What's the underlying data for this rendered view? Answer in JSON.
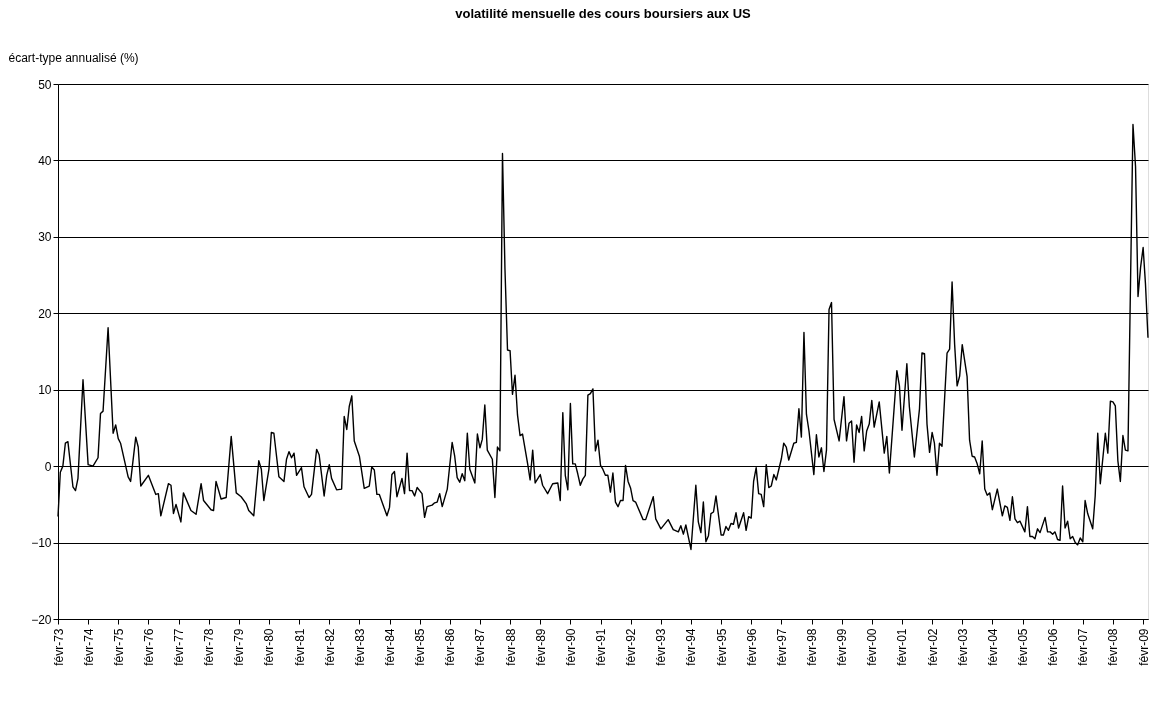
{
  "chart_data": {
    "type": "line",
    "title": "volatilité mensuelle des cours boursiers aux US",
    "ylabel": "écart-type annualisé (%)",
    "x": [
      "1973-02",
      "1973-03",
      "1973-04",
      "1973-05",
      "1973-06",
      "1973-08",
      "1973-09",
      "1973-10",
      "1973-12",
      "1974-02",
      "1974-04",
      "1974-06",
      "1974-07",
      "1974-08",
      "1974-10",
      "1974-12",
      "1975-01",
      "1975-02",
      "1975-03",
      "1975-06",
      "1975-07",
      "1975-09",
      "1975-10",
      "1975-11",
      "1976-02",
      "1976-05",
      "1976-06",
      "1976-07",
      "1976-10",
      "1976-11",
      "1976-12",
      "1977-01",
      "1977-03",
      "1977-04",
      "1977-07",
      "1977-09",
      "1977-11",
      "1977-12",
      "1978-03",
      "1978-04",
      "1978-05",
      "1978-07",
      "1978-09",
      "1978-11",
      "1979-01",
      "1979-03",
      "1979-05",
      "1979-06",
      "1979-08",
      "1979-10",
      "1979-11",
      "1979-12",
      "1980-02",
      "1980-03",
      "1980-04",
      "1980-06",
      "1980-08",
      "1980-09",
      "1980-10",
      "1980-11",
      "1980-12",
      "1981-01",
      "1981-03",
      "1981-04",
      "1981-06",
      "1981-07",
      "1981-09",
      "1981-10",
      "1981-12",
      "1982-01",
      "1982-02",
      "1982-03",
      "1982-05",
      "1982-07",
      "1982-08",
      "1982-09",
      "1982-10",
      "1982-11",
      "1982-12",
      "1983-02",
      "1983-04",
      "1983-06",
      "1983-07",
      "1983-08",
      "1983-09",
      "1983-10",
      "1984-01",
      "1984-02",
      "1984-03",
      "1984-04",
      "1984-05",
      "1984-07",
      "1984-08",
      "1984-09",
      "1984-10",
      "1984-11",
      "1984-12",
      "1985-01",
      "1985-03",
      "1985-04",
      "1985-05",
      "1985-07",
      "1985-08",
      "1985-09",
      "1985-10",
      "1985-11",
      "1986-01",
      "1986-03",
      "1986-04",
      "1986-05",
      "1986-06",
      "1986-07",
      "1986-08",
      "1986-09",
      "1986-10",
      "1986-12",
      "1987-01",
      "1987-02",
      "1987-03",
      "1987-04",
      "1987-05",
      "1987-07",
      "1987-08",
      "1987-09",
      "1987-10",
      "1987-11",
      "1987-12",
      "1988-01",
      "1988-02",
      "1988-03",
      "1988-04",
      "1988-05",
      "1988-06",
      "1988-07",
      "1988-09",
      "1988-10",
      "1988-11",
      "1988-12",
      "1989-02",
      "1989-03",
      "1989-05",
      "1989-07",
      "1989-09",
      "1989-10",
      "1989-11",
      "1989-12",
      "1990-01",
      "1990-02",
      "1990-03",
      "1990-04",
      "1990-05",
      "1990-06",
      "1990-07",
      "1990-08",
      "1990-09",
      "1990-10",
      "1990-11",
      "1990-12",
      "1991-01",
      "1991-02",
      "1991-03",
      "1991-04",
      "1991-05",
      "1991-06",
      "1991-07",
      "1991-08",
      "1991-09",
      "1991-10",
      "1991-11",
      "1991-12",
      "1992-01",
      "1992-02",
      "1992-03",
      "1992-04",
      "1992-07",
      "1992-08",
      "1992-11",
      "1992-12",
      "1993-02",
      "1993-05",
      "1993-07",
      "1993-09",
      "1993-10",
      "1993-11",
      "1993-12",
      "1994-02",
      "1994-04",
      "1994-05",
      "1994-06",
      "1994-07",
      "1994-08",
      "1994-09",
      "1994-10",
      "1994-11",
      "1994-12",
      "1995-02",
      "1995-03",
      "1995-04",
      "1995-05",
      "1995-06",
      "1995-07",
      "1995-08",
      "1995-09",
      "1995-11",
      "1995-12",
      "1996-01",
      "1996-02",
      "1996-03",
      "1996-04",
      "1996-05",
      "1996-06",
      "1996-07",
      "1996-08",
      "1996-09",
      "1996-10",
      "1996-11",
      "1996-12",
      "1997-02",
      "1997-03",
      "1997-04",
      "1997-05",
      "1997-07",
      "1997-08",
      "1997-09",
      "1997-10",
      "1997-11",
      "1997-12",
      "1998-01",
      "1998-03",
      "1998-04",
      "1998-05",
      "1998-06",
      "1998-07",
      "1998-08",
      "1998-09",
      "1998-10",
      "1998-11",
      "1999-01",
      "1999-03",
      "1999-04",
      "1999-05",
      "1999-06",
      "1999-07",
      "1999-08",
      "1999-09",
      "1999-10",
      "1999-11",
      "1999-12",
      "2000-01",
      "2000-02",
      "2000-03",
      "2000-05",
      "2000-07",
      "2000-08",
      "2000-09",
      "2000-12",
      "2001-01",
      "2001-02",
      "2001-04",
      "2001-05",
      "2001-07",
      "2001-09",
      "2001-10",
      "2001-11",
      "2001-12",
      "2002-01",
      "2002-02",
      "2002-03",
      "2002-04",
      "2002-05",
      "2002-06",
      "2002-07",
      "2002-08",
      "2002-09",
      "2002-10",
      "2002-11",
      "2002-12",
      "2003-01",
      "2003-02",
      "2003-04",
      "2003-05",
      "2003-06",
      "2003-07",
      "2003-08",
      "2003-09",
      "2003-10",
      "2003-11",
      "2003-12",
      "2004-01",
      "2004-02",
      "2004-04",
      "2004-06",
      "2004-07",
      "2004-08",
      "2004-09",
      "2004-10",
      "2004-11",
      "2004-12",
      "2005-01",
      "2005-03",
      "2005-04",
      "2005-05",
      "2005-06",
      "2005-07",
      "2005-08",
      "2005-09",
      "2005-11",
      "2005-12",
      "2006-01",
      "2006-02",
      "2006-03",
      "2006-04",
      "2006-05",
      "2006-06",
      "2006-07",
      "2006-08",
      "2006-09",
      "2006-10",
      "2006-11",
      "2006-12",
      "2007-01",
      "2007-02",
      "2007-03",
      "2007-04",
      "2007-06",
      "2007-07",
      "2007-08",
      "2007-09",
      "2007-11",
      "2007-12",
      "2008-01",
      "2008-02",
      "2008-03",
      "2008-04",
      "2008-05",
      "2008-06",
      "2008-07",
      "2008-08",
      "2008-09",
      "2008-10",
      "2008-11",
      "2008-12",
      "2009-01",
      "2009-02",
      "2009-03",
      "2009-04"
    ],
    "series": [
      {
        "color": "#000000",
        "values": [
          -6.6,
          -0.8,
          0,
          3.0,
          3.2,
          -2.7,
          -3.2,
          -1.6,
          11.3,
          0.2,
          0,
          1.1,
          6.9,
          7.2,
          18.1,
          4.3,
          5.4,
          3.6,
          3.0,
          -1.4,
          -2.0,
          3.8,
          2.5,
          -2.6,
          -1.2,
          -3.7,
          -3.6,
          -6.5,
          -2.3,
          -2.5,
          -6.2,
          -5.0,
          -7.3,
          -3.5,
          -5.8,
          -6.3,
          -2.3,
          -4.5,
          -5.7,
          -5.8,
          -2.0,
          -4.3,
          -4.1,
          3.9,
          -3.5,
          -4.0,
          -4.9,
          -5.8,
          -6.5,
          0.7,
          -0.4,
          -4.5,
          -0.4,
          4.4,
          4.3,
          -1.4,
          -2.0,
          0.9,
          1.9,
          1.1,
          1.7,
          -1.2,
          -0.2,
          -2.7,
          -4.1,
          -3.7,
          2.2,
          1.5,
          -3.9,
          -1.2,
          0.2,
          -1.6,
          -3.1,
          -3.0,
          6.5,
          4.8,
          7.8,
          9.2,
          3.3,
          1.3,
          -2.9,
          -2.6,
          -0.1,
          -0.5,
          -3.7,
          -3.7,
          -6.5,
          -5.4,
          -1.1,
          -0.7,
          -4.0,
          -1.6,
          -3.6,
          1.7,
          -3.2,
          -3.2,
          -3.9,
          -2.8,
          -3.6,
          -6.7,
          -5.3,
          -5.1,
          -4.8,
          -4.7,
          -3.6,
          -5.3,
          -3.0,
          3.1,
          1.3,
          -1.5,
          -2.1,
          -1.0,
          -1.9,
          4.3,
          -0.4,
          -2.2,
          4.2,
          2.4,
          3.5,
          8.0,
          2.1,
          0.9,
          -4.1,
          2.5,
          2.0,
          40.9,
          25.8,
          15.2,
          15.1,
          9.4,
          11.9,
          6.7,
          4.0,
          4.2,
          0.3,
          -1.8,
          2.1,
          -2.2,
          -1.1,
          -2.5,
          -3.6,
          -2.3,
          -2.2,
          -4.5,
          7.0,
          -1.2,
          -3.1,
          8.2,
          0.3,
          0.3,
          -1.0,
          -2.5,
          -1.7,
          -1.2,
          9.3,
          9.5,
          10.1,
          2.0,
          3.4,
          0.1,
          -0.4,
          -1.2,
          -1.2,
          -3.4,
          -0.9,
          -4.7,
          -5.3,
          -4.5,
          -4.5,
          0.1,
          -2.0,
          -2.9,
          -4.5,
          -4.7,
          -7.0,
          -7.0,
          -4.0,
          -6.9,
          -8.2,
          -7.0,
          -8.3,
          -8.6,
          -7.8,
          -8.9,
          -7.7,
          -10.9,
          -2.5,
          -7.3,
          -8.7,
          -4.7,
          -9.9,
          -9.1,
          -6.2,
          -6.0,
          -3.9,
          -9.0,
          -9.0,
          -7.9,
          -8.4,
          -7.5,
          -7.6,
          -6.1,
          -8.1,
          -6.1,
          -8.4,
          -6.6,
          -6.8,
          -2.0,
          -0.2,
          -3.6,
          -3.7,
          -5.3,
          0.2,
          -2.8,
          -2.6,
          -1.1,
          -1.8,
          1.0,
          3.0,
          2.5,
          0.8,
          3.0,
          3.1,
          7.5,
          3.8,
          17.5,
          6.8,
          4.6,
          -1.1,
          4.1,
          1.2,
          2.4,
          -0.7,
          2.1,
          20.5,
          21.4,
          6.1,
          3.3,
          9.1,
          3.3,
          5.6,
          5.9,
          0.5,
          5.4,
          4.4,
          6.5,
          2.0,
          4.6,
          5.5,
          8.6,
          5.1,
          8.4,
          1.7,
          3.9,
          -0.9,
          12.5,
          10.5,
          4.7,
          13.4,
          7.8,
          1.2,
          7.5,
          14.8,
          14.7,
          5.5,
          1.8,
          4.4,
          3.0,
          -1.2,
          3.0,
          2.6,
          8.6,
          14.8,
          15.3,
          24.1,
          15.9,
          10.5,
          11.8,
          15.9,
          11.7,
          3.4,
          1.3,
          1.2,
          0.3,
          -1.0,
          3.3,
          -3.0,
          -3.8,
          -3.5,
          -5.7,
          -3.0,
          -6.5,
          -5.2,
          -5.4,
          -7.1,
          -4.0,
          -6.9,
          -7.4,
          -7.2,
          -8.6,
          -5.3,
          -9.2,
          -9.2,
          -9.5,
          -8.2,
          -8.7,
          -6.7,
          -8.6,
          -8.6,
          -8.9,
          -8.6,
          -9.6,
          -9.7,
          -2.6,
          -8.1,
          -7.2,
          -9.5,
          -9.2,
          -10.0,
          -10.3,
          -9.4,
          -9.9,
          -4.5,
          -6.2,
          -8.2,
          -3.9,
          4.3,
          -2.3,
          4.3,
          1.7,
          8.5,
          8.4,
          7.9,
          0.7,
          -2.0,
          4.0,
          2.1,
          2.0,
          23.9,
          44.7,
          39.2,
          22.2,
          26.0,
          28.6,
          23.9,
          16.8
        ]
      }
    ],
    "xlim": [
      "1973-02",
      "2009-04"
    ],
    "xticks": [
      {
        "value": "1973-02",
        "label": "févr-73"
      },
      {
        "value": "1974-02",
        "label": "févr-74"
      },
      {
        "value": "1975-02",
        "label": "févr-75"
      },
      {
        "value": "1976-02",
        "label": "févr-76"
      },
      {
        "value": "1977-02",
        "label": "févr-77"
      },
      {
        "value": "1978-02",
        "label": "févr-78"
      },
      {
        "value": "1979-02",
        "label": "févr-79"
      },
      {
        "value": "1980-02",
        "label": "févr-80"
      },
      {
        "value": "1981-02",
        "label": "févr-81"
      },
      {
        "value": "1982-02",
        "label": "févr-82"
      },
      {
        "value": "1983-02",
        "label": "févr-83"
      },
      {
        "value": "1984-02",
        "label": "févr-84"
      },
      {
        "value": "1985-02",
        "label": "févr-85"
      },
      {
        "value": "1986-02",
        "label": "févr-86"
      },
      {
        "value": "1987-02",
        "label": "févr-87"
      },
      {
        "value": "1988-02",
        "label": "févr-88"
      },
      {
        "value": "1989-02",
        "label": "févr-89"
      },
      {
        "value": "1990-02",
        "label": "févr-90"
      },
      {
        "value": "1991-02",
        "label": "févr-91"
      },
      {
        "value": "1992-02",
        "label": "févr-92"
      },
      {
        "value": "1993-02",
        "label": "févr-93"
      },
      {
        "value": "1994-02",
        "label": "févr-94"
      },
      {
        "value": "1995-02",
        "label": "févr-95"
      },
      {
        "value": "1996-02",
        "label": "févr-96"
      },
      {
        "value": "1997-02",
        "label": "févr-97"
      },
      {
        "value": "1998-02",
        "label": "févr-98"
      },
      {
        "value": "1999-02",
        "label": "févr-99"
      },
      {
        "value": "2000-02",
        "label": "févr-00"
      },
      {
        "value": "2001-02",
        "label": "févr-01"
      },
      {
        "value": "2002-02",
        "label": "févr-02"
      },
      {
        "value": "2003-02",
        "label": "févr-03"
      },
      {
        "value": "2004-02",
        "label": "févr-04"
      },
      {
        "value": "2005-02",
        "label": "févr-05"
      },
      {
        "value": "2006-02",
        "label": "févr-06"
      },
      {
        "value": "2007-02",
        "label": "févr-07"
      },
      {
        "value": "2008-02",
        "label": "févr-08"
      },
      {
        "value": "2009-02",
        "label": "févr-09"
      }
    ],
    "ylim": [
      -20,
      50
    ],
    "yticks": [
      -20,
      -10,
      0,
      10,
      20,
      30,
      40,
      50
    ],
    "grid": "y",
    "legend": false,
    "marker": "none",
    "line_style": "solid"
  }
}
